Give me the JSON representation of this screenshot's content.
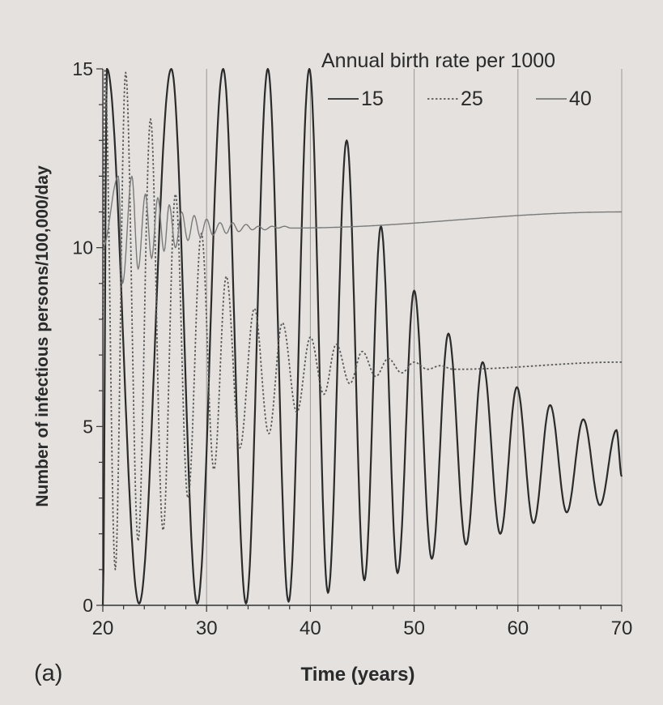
{
  "chart_data": {
    "type": "line",
    "panel_label": "(a)",
    "xlabel": "Time (years)",
    "ylabel": "Number of infectious persons/100,000/day",
    "xlim": [
      20,
      70
    ],
    "ylim": [
      0,
      15
    ],
    "x_ticks": [
      20,
      30,
      40,
      50,
      60,
      70
    ],
    "y_ticks": [
      0,
      5,
      10,
      15
    ],
    "grid": "vertical lines at x ticks",
    "legend": {
      "title": "Annual birth rate per 1000",
      "placement": "top-right"
    },
    "series": [
      {
        "name": "15",
        "style": "solid",
        "color": "#2b2b2b",
        "peak_times": [
          20.4,
          26.6,
          31.6,
          35.9,
          39.9,
          43.5,
          46.8,
          50.0,
          53.3,
          56.6,
          59.9,
          63.1,
          66.3,
          69.5
        ],
        "peak_values": [
          15,
          15,
          15,
          15,
          15,
          13.0,
          10.6,
          8.8,
          7.6,
          6.8,
          6.1,
          5.6,
          5.2,
          4.9
        ],
        "trough_times": [
          23.5,
          29.1,
          33.8,
          37.9,
          41.7,
          45.2,
          48.4,
          51.7,
          55.0,
          58.3,
          61.5,
          64.7,
          67.9
        ],
        "trough_values": [
          0.05,
          0.05,
          0.05,
          0.1,
          0.35,
          0.7,
          0.9,
          1.3,
          1.7,
          2.0,
          2.3,
          2.6,
          2.8
        ],
        "start_value": 0.0,
        "end_value": 3.6
      },
      {
        "name": "25",
        "style": "dotted",
        "color": "#5a5a5a",
        "peak_times": [
          20.2,
          22.2,
          24.6,
          27.0,
          29.5,
          31.9,
          34.6,
          37.3,
          40.0,
          42.5,
          45.0,
          47.5,
          50.0,
          52.5
        ],
        "peak_values": [
          15,
          14.9,
          13.6,
          11.5,
          10.4,
          9.2,
          8.3,
          7.9,
          7.5,
          7.3,
          7.1,
          6.9,
          6.8,
          6.7
        ],
        "trough_times": [
          21.2,
          23.4,
          25.8,
          28.2,
          30.7,
          33.2,
          36.0,
          38.7,
          41.3,
          43.8,
          46.3,
          48.8,
          51.3,
          53.8
        ],
        "trough_values": [
          1.0,
          1.8,
          2.1,
          3.0,
          3.8,
          4.4,
          4.8,
          5.4,
          5.9,
          6.2,
          6.4,
          6.5,
          6.6,
          6.6
        ],
        "start_value": 8.0,
        "end_value": 6.8
      },
      {
        "name": "40",
        "style": "solid",
        "color": "#7a7a7a",
        "peak_times": [
          21.5,
          22.8,
          24.1,
          25.3,
          26.4,
          27.6,
          28.8,
          30.0,
          31.3,
          32.5,
          33.8,
          35.0,
          36.3,
          37.5
        ],
        "peak_values": [
          12.0,
          12.0,
          11.5,
          11.4,
          11.2,
          11.0,
          10.9,
          10.8,
          10.7,
          10.7,
          10.65,
          10.6,
          10.6,
          10.6
        ],
        "trough_times": [
          21.9,
          23.4,
          24.7,
          25.9,
          27.0,
          28.2,
          29.4,
          30.6,
          31.9,
          33.1,
          34.4,
          35.6,
          36.9,
          38.1
        ],
        "trough_values": [
          9.0,
          9.4,
          9.7,
          9.9,
          10.0,
          10.2,
          10.3,
          10.35,
          10.4,
          10.45,
          10.5,
          10.5,
          10.55,
          10.55
        ],
        "start_value": 10.0,
        "end_value": 11.0
      }
    ]
  }
}
